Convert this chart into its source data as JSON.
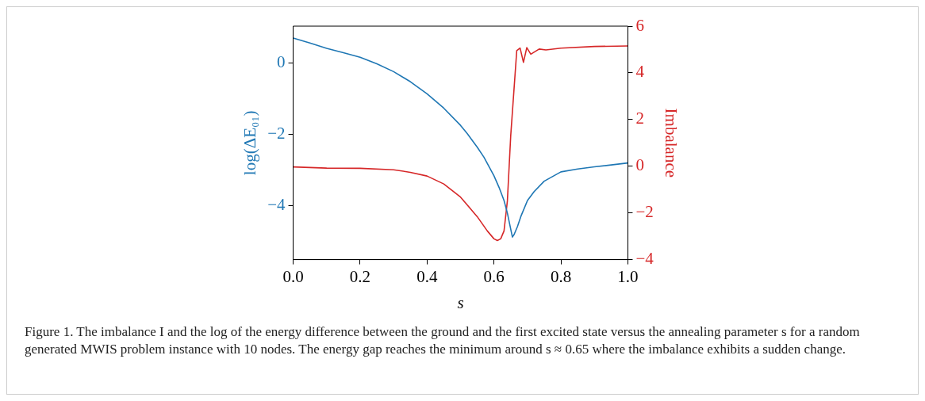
{
  "chart_data": {
    "type": "line",
    "xlabel": "s",
    "ylabel": "log(ΔE₀₁)",
    "y2label": "Imbalance",
    "xlim": [
      0,
      1
    ],
    "xticks": [
      {
        "value": 0,
        "label": "0.0"
      },
      {
        "value": 0.2,
        "label": "0.2"
      },
      {
        "value": 0.4,
        "label": "0.4"
      },
      {
        "value": 0.6,
        "label": "0.6"
      },
      {
        "value": 0.8,
        "label": "0.8"
      },
      {
        "value": 1,
        "label": "1.0"
      }
    ],
    "ylim": [
      -5.5,
      1.02
    ],
    "yticks": [
      0,
      -2,
      -4
    ],
    "y2lim": [
      -4,
      6
    ],
    "y2ticks": [
      -4,
      -2,
      0,
      2,
      4,
      6
    ],
    "grid": false,
    "legend": false,
    "marker": "none",
    "line_style": "solid",
    "series": [
      {
        "color": "#1f77b4",
        "x": [
          0,
          0.05,
          0.1,
          0.15,
          0.2,
          0.25,
          0.3,
          0.35,
          0.4,
          0.45,
          0.5,
          0.52,
          0.55,
          0.57,
          0.6,
          0.615,
          0.63,
          0.64,
          0.65,
          0.655,
          0.66,
          0.67,
          0.68,
          0.7,
          0.72,
          0.75,
          0.8,
          0.85,
          0.9,
          1.0
        ],
        "values": [
          0.69,
          0.55,
          0.4,
          0.28,
          0.15,
          -0.03,
          -0.25,
          -0.53,
          -0.87,
          -1.27,
          -1.75,
          -1.98,
          -2.36,
          -2.64,
          -3.16,
          -3.48,
          -3.85,
          -4.2,
          -4.65,
          -4.87,
          -4.8,
          -4.58,
          -4.3,
          -3.85,
          -3.6,
          -3.31,
          -3.05,
          -2.97,
          -2.91,
          -2.8
        ]
      },
      {
        "color": "#d62728",
        "axis": "y2",
        "x": [
          0,
          0.1,
          0.2,
          0.3,
          0.35,
          0.4,
          0.45,
          0.5,
          0.55,
          0.58,
          0.6,
          0.61,
          0.62,
          0.63,
          0.64,
          0.65,
          0.668,
          0.678,
          0.688,
          0.698,
          0.71,
          0.735,
          0.755,
          0.8,
          0.9,
          1.0
        ],
        "values": [
          -0.03,
          -0.08,
          -0.09,
          -0.15,
          -0.26,
          -0.42,
          -0.76,
          -1.32,
          -2.16,
          -2.77,
          -3.11,
          -3.18,
          -3.11,
          -2.77,
          -1.49,
          1.31,
          4.95,
          5.06,
          4.45,
          5.08,
          4.8,
          5.02,
          4.98,
          5.06,
          5.13,
          5.15
        ]
      }
    ],
    "annotations": [
      "Figure 1. The imbalance I and the log of the energy difference between the ground and the first excited state versus the annealing parameter s for a random generated MWIS problem instance with 10 nodes. The energy gap reaches the minimum around s ≈ 0.65 where the imbalance exhibits a sudden change."
    ]
  }
}
